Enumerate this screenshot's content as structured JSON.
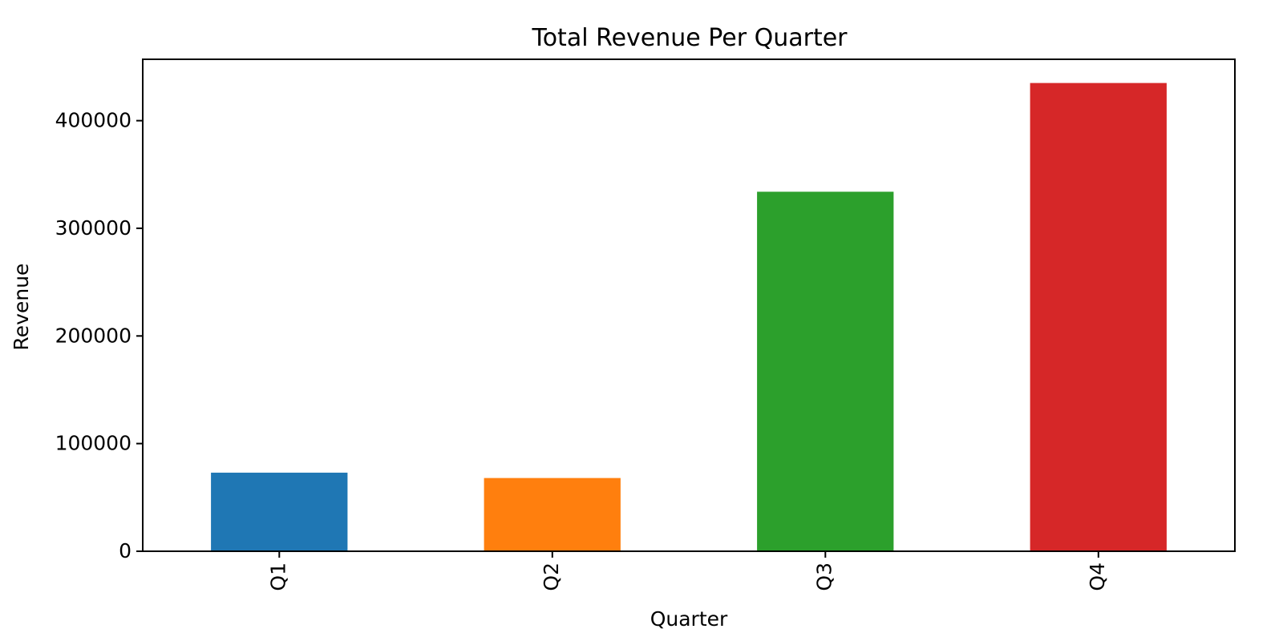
{
  "chart_data": {
    "type": "bar",
    "title": "Total Revenue Per Quarter",
    "xlabel": "Quarter",
    "ylabel": "Revenue",
    "categories": [
      "Q1",
      "Q2",
      "Q3",
      "Q4"
    ],
    "values": [
      73000,
      68000,
      334000,
      435000
    ],
    "colors": [
      "#1f77b4",
      "#ff7f0e",
      "#2ca02c",
      "#d62728"
    ],
    "ylim": [
      0,
      457000
    ],
    "yticks": [
      0,
      100000,
      200000,
      300000,
      400000
    ],
    "ytick_labels": [
      "0",
      "100000",
      "200000",
      "300000",
      "400000"
    ],
    "xtick_rotation": "vertical",
    "grid": false,
    "legend": "none"
  }
}
